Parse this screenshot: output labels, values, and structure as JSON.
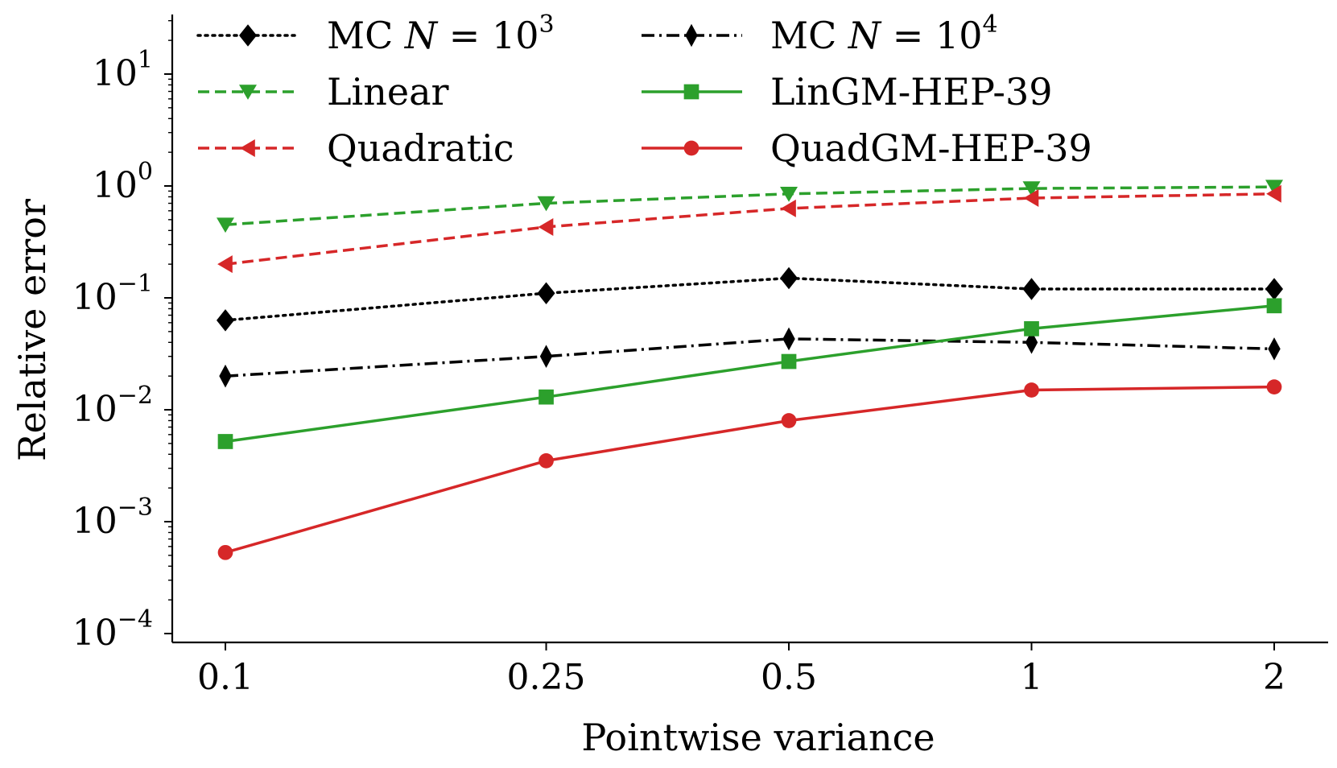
{
  "chart_data": {
    "type": "line",
    "title": "",
    "xlabel": "Pointwise variance",
    "ylabel": "Relative error",
    "x": [
      0.1,
      0.25,
      0.5,
      1,
      2
    ],
    "x_tick_labels": [
      "0.1",
      "0.25",
      "0.5",
      "1",
      "2"
    ],
    "x_scale": "log",
    "y_scale": "log",
    "ylim": [
      0.0001,
      30
    ],
    "y_ticks": [
      {
        "base": "10",
        "exp": "1",
        "value": 10
      },
      {
        "base": "10",
        "exp": "0",
        "value": 1
      },
      {
        "base": "10",
        "exp": "−1",
        "value": 0.1
      },
      {
        "base": "10",
        "exp": "−2",
        "value": 0.01
      },
      {
        "base": "10",
        "exp": "−3",
        "value": 0.001
      },
      {
        "base": "10",
        "exp": "−4",
        "value": 0.0001
      }
    ],
    "grid": false,
    "legend_position": "top",
    "series": [
      {
        "name": "MC N = 10^3",
        "label_text": "MC ",
        "label_var": "N",
        "label_eq": " = 10",
        "label_sup": "3",
        "color": "#000000",
        "dash": "dotted",
        "marker": "diamond",
        "values": [
          0.063,
          0.11,
          0.15,
          0.12,
          0.12
        ]
      },
      {
        "name": "MC N = 10^4",
        "label_text": "MC ",
        "label_var": "N",
        "label_eq": " = 10",
        "label_sup": "4",
        "color": "#000000",
        "dash": "dashdot",
        "marker": "thin-diamond",
        "values": [
          0.02,
          0.03,
          0.043,
          0.04,
          0.035
        ]
      },
      {
        "name": "Linear",
        "label_text": "Linear",
        "color": "#2ca02c",
        "dash": "dashed",
        "marker": "triangle-down",
        "values": [
          0.45,
          0.7,
          0.85,
          0.95,
          0.98
        ]
      },
      {
        "name": "LinGM-HEP-39",
        "label_text": "LinGM-HEP-39",
        "color": "#2ca02c",
        "dash": "solid",
        "marker": "square",
        "values": [
          0.0052,
          0.013,
          0.027,
          0.053,
          0.085
        ]
      },
      {
        "name": "Quadratic",
        "label_text": "Quadratic",
        "color": "#d62728",
        "dash": "dashed",
        "marker": "triangle-left",
        "values": [
          0.2,
          0.43,
          0.63,
          0.78,
          0.85
        ]
      },
      {
        "name": "QuadGM-HEP-39",
        "label_text": "QuadGM-HEP-39",
        "color": "#d62728",
        "dash": "solid",
        "marker": "circle",
        "values": [
          0.00053,
          0.0035,
          0.008,
          0.015,
          0.016
        ]
      }
    ]
  }
}
